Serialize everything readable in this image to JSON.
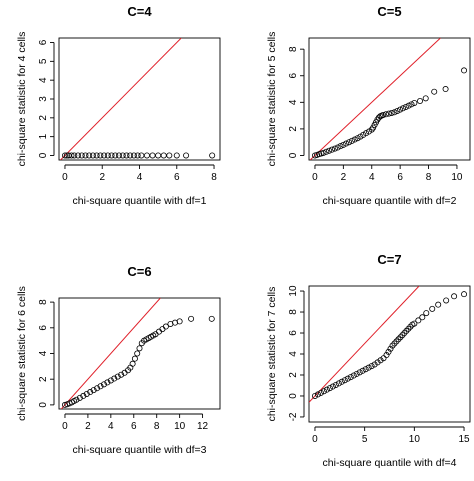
{
  "colors": {
    "reference_line": "#e0202a",
    "points": "#000000",
    "axes": "#000000",
    "background": "#ffffff"
  },
  "chart_data": [
    {
      "type": "scatter",
      "title": "C=4",
      "xlabel": "chi-square quantile with df=1",
      "ylabel": "chi-square statistic for 4 cells",
      "xlim": [
        0,
        8
      ],
      "ylim": [
        0,
        6
      ],
      "xticks": [
        0,
        2,
        4,
        6,
        8
      ],
      "yticks": [
        0,
        1,
        2,
        3,
        4,
        5,
        6
      ],
      "reference_line": "y = x",
      "quantiles": [
        0.0,
        0.1,
        0.2,
        0.35,
        0.5,
        0.7,
        0.9,
        1.1,
        1.3,
        1.5,
        1.7,
        1.9,
        2.1,
        2.3,
        2.5,
        2.7,
        2.9,
        3.1,
        3.3,
        3.5,
        3.7,
        3.9,
        4.1,
        4.4,
        4.7,
        5.0,
        5.3,
        5.6,
        6.0,
        6.5,
        7.9
      ],
      "statistics": [
        0,
        0,
        0,
        0,
        0,
        0,
        0,
        0,
        0,
        0,
        0,
        0,
        0,
        0,
        0,
        0,
        0,
        0,
        0,
        0,
        0,
        0,
        0,
        0,
        0,
        0,
        0,
        0,
        0,
        0,
        0
      ]
    },
    {
      "type": "scatter",
      "title": "C=5",
      "xlabel": "chi-square quantile with df=2",
      "ylabel": "chi-square statistic for 5 cells",
      "xlim": [
        0,
        10.5
      ],
      "ylim": [
        0,
        8.5
      ],
      "xticks": [
        0,
        2,
        4,
        6,
        8,
        10
      ],
      "yticks": [
        0,
        2,
        4,
        6,
        8
      ],
      "reference_line": "y = x",
      "quantiles": [
        0.0,
        0.15,
        0.3,
        0.45,
        0.6,
        0.8,
        1.0,
        1.2,
        1.4,
        1.6,
        1.8,
        2.0,
        2.2,
        2.4,
        2.6,
        2.8,
        3.0,
        3.2,
        3.4,
        3.6,
        3.8,
        4.0,
        4.1,
        4.2,
        4.3,
        4.4,
        4.5,
        4.6,
        4.7,
        4.8,
        5.0,
        5.2,
        5.4,
        5.6,
        5.8,
        6.0,
        6.2,
        6.4,
        6.6,
        6.8,
        7.0,
        7.4,
        7.8,
        8.4,
        9.2,
        10.5
      ],
      "statistics": [
        0.0,
        0.05,
        0.1,
        0.15,
        0.2,
        0.28,
        0.36,
        0.44,
        0.52,
        0.6,
        0.7,
        0.8,
        0.9,
        1.0,
        1.1,
        1.2,
        1.3,
        1.42,
        1.55,
        1.68,
        1.8,
        1.95,
        2.1,
        2.3,
        2.5,
        2.7,
        2.85,
        2.95,
        3.0,
        3.05,
        3.1,
        3.15,
        3.2,
        3.25,
        3.35,
        3.45,
        3.55,
        3.65,
        3.75,
        3.85,
        3.95,
        4.1,
        4.3,
        4.8,
        5.0,
        6.4
      ]
    },
    {
      "type": "scatter",
      "title": "C=6",
      "xlabel": "chi-square quantile with df=3",
      "ylabel": "chi-square statistic for 6 cells",
      "xlim": [
        0,
        13
      ],
      "ylim": [
        0,
        8
      ],
      "xticks": [
        0,
        2,
        4,
        6,
        8,
        10,
        12
      ],
      "yticks": [
        0,
        2,
        4,
        6,
        8
      ],
      "reference_line": "y = x",
      "quantiles": [
        0.0,
        0.2,
        0.4,
        0.6,
        0.8,
        1.0,
        1.3,
        1.6,
        1.9,
        2.2,
        2.5,
        2.8,
        3.1,
        3.4,
        3.7,
        4.0,
        4.3,
        4.6,
        4.9,
        5.2,
        5.5,
        5.7,
        5.9,
        6.1,
        6.3,
        6.5,
        6.7,
        6.9,
        7.1,
        7.3,
        7.5,
        7.7,
        7.9,
        8.2,
        8.5,
        8.8,
        9.2,
        9.6,
        10.0,
        11.0,
        12.8
      ],
      "statistics": [
        0.0,
        0.05,
        0.12,
        0.2,
        0.3,
        0.4,
        0.55,
        0.7,
        0.85,
        1.0,
        1.15,
        1.3,
        1.45,
        1.6,
        1.75,
        1.9,
        2.05,
        2.2,
        2.35,
        2.5,
        2.7,
        2.9,
        3.2,
        3.6,
        4.0,
        4.4,
        4.8,
        5.0,
        5.1,
        5.2,
        5.3,
        5.4,
        5.5,
        5.7,
        5.9,
        6.1,
        6.3,
        6.4,
        6.5,
        6.7,
        6.7
      ]
    },
    {
      "type": "scatter",
      "title": "C=7",
      "xlabel": "chi-square quantile with df=4",
      "ylabel": "chi-square statistic for 7 cells",
      "xlim": [
        0,
        15
      ],
      "ylim": [
        -2,
        10
      ],
      "xticks": [
        0,
        5,
        10,
        15
      ],
      "yticks": [
        -2,
        0,
        2,
        4,
        6,
        8,
        10
      ],
      "reference_line": "y = x",
      "quantiles": [
        0.0,
        0.3,
        0.6,
        0.9,
        1.2,
        1.5,
        1.8,
        2.1,
        2.4,
        2.7,
        3.0,
        3.3,
        3.6,
        3.9,
        4.2,
        4.5,
        4.8,
        5.1,
        5.4,
        5.7,
        6.0,
        6.3,
        6.6,
        6.9,
        7.2,
        7.4,
        7.6,
        7.8,
        8.0,
        8.2,
        8.4,
        8.6,
        8.8,
        9.0,
        9.2,
        9.4,
        9.6,
        9.8,
        10.0,
        10.4,
        10.8,
        11.2,
        11.8,
        12.4,
        13.2,
        14.0,
        15.0
      ],
      "statistics": [
        0.0,
        0.15,
        0.3,
        0.45,
        0.6,
        0.75,
        0.9,
        1.05,
        1.2,
        1.35,
        1.5,
        1.65,
        1.8,
        1.95,
        2.1,
        2.25,
        2.4,
        2.55,
        2.7,
        2.85,
        3.0,
        3.2,
        3.4,
        3.6,
        3.9,
        4.2,
        4.5,
        4.8,
        5.0,
        5.2,
        5.4,
        5.6,
        5.8,
        6.0,
        6.2,
        6.4,
        6.6,
        6.8,
        6.9,
        7.2,
        7.5,
        7.9,
        8.3,
        8.7,
        9.1,
        9.5,
        9.7
      ]
    }
  ]
}
